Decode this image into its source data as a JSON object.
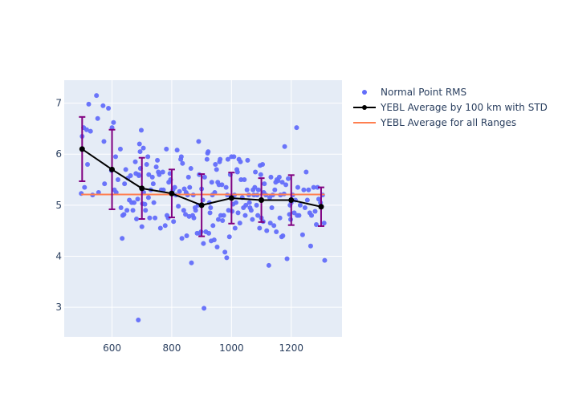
{
  "chart_data": {
    "type": "scatter",
    "xlim": [
      440,
      1370
    ],
    "ylim": [
      2.42,
      7.45
    ],
    "x_ticks": [
      600,
      800,
      1000,
      1200
    ],
    "x_tick_labels": [
      "600",
      "800",
      "1000",
      "1200"
    ],
    "y_ticks": [
      3,
      4,
      5,
      6,
      7
    ],
    "y_tick_labels": [
      "3",
      "4",
      "5",
      "6",
      "7"
    ],
    "grid": true,
    "legend_position": "right",
    "colors": {
      "plot_bg": "#e5ecf6",
      "grid": "#ffffff",
      "points": "#636efa",
      "average_line": "#000000",
      "error_bars": "#800080",
      "overall_line": "#ff7f50"
    },
    "series": [
      {
        "name": "Normal Point RMS",
        "mode": "markers",
        "points": [
          [
            497,
            5.23
          ],
          [
            500,
            6.35
          ],
          [
            505,
            6.52
          ],
          [
            508,
            5.35
          ],
          [
            515,
            6.48
          ],
          [
            518,
            5.8
          ],
          [
            522,
            6.98
          ],
          [
            528,
            6.45
          ],
          [
            535,
            5.2
          ],
          [
            548,
            7.15
          ],
          [
            552,
            6.7
          ],
          [
            555,
            5.25
          ],
          [
            570,
            6.95
          ],
          [
            573,
            6.25
          ],
          [
            575,
            5.42
          ],
          [
            588,
            6.9
          ],
          [
            598,
            5.68
          ],
          [
            600,
            6.52
          ],
          [
            605,
            6.62
          ],
          [
            608,
            5.3
          ],
          [
            612,
            5.95
          ],
          [
            614,
            5.25
          ],
          [
            620,
            5.5
          ],
          [
            628,
            6.1
          ],
          [
            630,
            4.95
          ],
          [
            634,
            4.35
          ],
          [
            636,
            4.8
          ],
          [
            640,
            4.82
          ],
          [
            642,
            5.42
          ],
          [
            646,
            5.7
          ],
          [
            650,
            4.9
          ],
          [
            653,
            5.53
          ],
          [
            658,
            5.1
          ],
          [
            662,
            5.58
          ],
          [
            666,
            5.05
          ],
          [
            670,
            4.9
          ],
          [
            674,
            5.05
          ],
          [
            678,
            5.85
          ],
          [
            680,
            5.62
          ],
          [
            682,
            4.73
          ],
          [
            686,
            5.12
          ],
          [
            688,
            2.75
          ],
          [
            689,
            5.6
          ],
          [
            690,
            5.58
          ],
          [
            692,
            6.2
          ],
          [
            694,
            6.05
          ],
          [
            695,
            5.72
          ],
          [
            698,
            6.47
          ],
          [
            700,
            4.58
          ],
          [
            702,
            5.03
          ],
          [
            705,
            6.12
          ],
          [
            706,
            5.25
          ],
          [
            710,
            5.02
          ],
          [
            712,
            4.9
          ],
          [
            716,
            5.8
          ],
          [
            720,
            5.95
          ],
          [
            722,
            5.15
          ],
          [
            723,
            5.6
          ],
          [
            726,
            4.75
          ],
          [
            730,
            5.3
          ],
          [
            735,
            5.55
          ],
          [
            738,
            5.42
          ],
          [
            740,
            5.05
          ],
          [
            744,
            4.75
          ],
          [
            748,
            5.75
          ],
          [
            752,
            5.88
          ],
          [
            755,
            5.65
          ],
          [
            758,
            5.6
          ],
          [
            762,
            4.55
          ],
          [
            765,
            5.3
          ],
          [
            770,
            5.65
          ],
          [
            772,
            5.3
          ],
          [
            778,
            4.6
          ],
          [
            782,
            6.1
          ],
          [
            784,
            4.8
          ],
          [
            788,
            4.75
          ],
          [
            790,
            5.45
          ],
          [
            794,
            5.62
          ],
          [
            796,
            5.5
          ],
          [
            800,
            5.25
          ],
          [
            804,
            5.3
          ],
          [
            806,
            4.68
          ],
          [
            810,
            5.35
          ],
          [
            814,
            5.2
          ],
          [
            818,
            6.08
          ],
          [
            822,
            4.98
          ],
          [
            826,
            5.27
          ],
          [
            830,
            5.9
          ],
          [
            832,
            5.95
          ],
          [
            834,
            4.35
          ],
          [
            836,
            5.82
          ],
          [
            840,
            4.9
          ],
          [
            842,
            5.32
          ],
          [
            846,
            4.82
          ],
          [
            848,
            5.25
          ],
          [
            850,
            4.4
          ],
          [
            853,
            5.2
          ],
          [
            856,
            5.55
          ],
          [
            858,
            4.78
          ],
          [
            860,
            5.35
          ],
          [
            864,
            5.72
          ],
          [
            866,
            3.87
          ],
          [
            870,
            4.8
          ],
          [
            872,
            5.2
          ],
          [
            874,
            4.75
          ],
          [
            878,
            4.95
          ],
          [
            880,
            4.9
          ],
          [
            885,
            4.45
          ],
          [
            888,
            5.0
          ],
          [
            890,
            6.25
          ],
          [
            892,
            5.6
          ],
          [
            895,
            4.45
          ],
          [
            898,
            4.48
          ],
          [
            900,
            5.32
          ],
          [
            904,
            5.1
          ],
          [
            906,
            4.25
          ],
          [
            908,
            2.98
          ],
          [
            910,
            5.55
          ],
          [
            914,
            4.48
          ],
          [
            918,
            5.9
          ],
          [
            920,
            6.02
          ],
          [
            922,
            6.05
          ],
          [
            924,
            4.45
          ],
          [
            926,
            5.05
          ],
          [
            928,
            4.85
          ],
          [
            930,
            4.95
          ],
          [
            932,
            4.3
          ],
          [
            934,
            5.45
          ],
          [
            936,
            5.2
          ],
          [
            938,
            4.6
          ],
          [
            942,
            4.32
          ],
          [
            944,
            5.25
          ],
          [
            946,
            5.8
          ],
          [
            950,
            5.7
          ],
          [
            952,
            4.18
          ],
          [
            954,
            5.45
          ],
          [
            956,
            4.72
          ],
          [
            958,
            5.4
          ],
          [
            960,
            5.85
          ],
          [
            962,
            5.9
          ],
          [
            964,
            4.8
          ],
          [
            968,
            5.4
          ],
          [
            970,
            4.7
          ],
          [
            974,
            4.8
          ],
          [
            978,
            4.08
          ],
          [
            982,
            5.35
          ],
          [
            984,
            3.97
          ],
          [
            986,
            5.2
          ],
          [
            988,
            5.9
          ],
          [
            990,
            4.9
          ],
          [
            993,
            4.38
          ],
          [
            996,
            5.6
          ],
          [
            998,
            5.15
          ],
          [
            1000,
            5.95
          ],
          [
            1002,
            4.88
          ],
          [
            1005,
            5.02
          ],
          [
            1008,
            5.95
          ],
          [
            1010,
            5.2
          ],
          [
            1012,
            4.55
          ],
          [
            1015,
            5.05
          ],
          [
            1018,
            5.7
          ],
          [
            1020,
            5.65
          ],
          [
            1022,
            4.85
          ],
          [
            1025,
            5.9
          ],
          [
            1028,
            4.65
          ],
          [
            1030,
            5.85
          ],
          [
            1032,
            5.5
          ],
          [
            1036,
            5.15
          ],
          [
            1040,
            4.95
          ],
          [
            1043,
            5.5
          ],
          [
            1046,
            4.8
          ],
          [
            1048,
            5.0
          ],
          [
            1052,
            5.3
          ],
          [
            1054,
            5.88
          ],
          [
            1058,
            5.2
          ],
          [
            1060,
            5.05
          ],
          [
            1062,
            4.95
          ],
          [
            1066,
            4.9
          ],
          [
            1070,
            4.72
          ],
          [
            1072,
            5.3
          ],
          [
            1075,
            5.2
          ],
          [
            1078,
            5.35
          ],
          [
            1080,
            5.65
          ],
          [
            1084,
            5.0
          ],
          [
            1086,
            5.2
          ],
          [
            1088,
            4.8
          ],
          [
            1090,
            5.3
          ],
          [
            1094,
            4.55
          ],
          [
            1096,
            5.78
          ],
          [
            1098,
            5.6
          ],
          [
            1100,
            4.75
          ],
          [
            1104,
            5.8
          ],
          [
            1106,
            4.68
          ],
          [
            1108,
            5.25
          ],
          [
            1110,
            5.42
          ],
          [
            1115,
            5.2
          ],
          [
            1118,
            4.5
          ],
          [
            1125,
            3.82
          ],
          [
            1128,
            5.15
          ],
          [
            1130,
            4.65
          ],
          [
            1132,
            5.55
          ],
          [
            1135,
            4.95
          ],
          [
            1138,
            5.2
          ],
          [
            1142,
            4.6
          ],
          [
            1145,
            5.3
          ],
          [
            1148,
            5.45
          ],
          [
            1150,
            4.48
          ],
          [
            1152,
            5.5
          ],
          [
            1156,
            5.48
          ],
          [
            1160,
            5.55
          ],
          [
            1162,
            4.75
          ],
          [
            1164,
            5.2
          ],
          [
            1168,
            4.38
          ],
          [
            1170,
            5.45
          ],
          [
            1172,
            4.4
          ],
          [
            1176,
            5.22
          ],
          [
            1178,
            6.15
          ],
          [
            1182,
            5.4
          ],
          [
            1186,
            3.95
          ],
          [
            1190,
            5.52
          ],
          [
            1194,
            4.82
          ],
          [
            1196,
            5.0
          ],
          [
            1198,
            4.72
          ],
          [
            1200,
            5.05
          ],
          [
            1205,
            5.2
          ],
          [
            1210,
            4.85
          ],
          [
            1214,
            5.1
          ],
          [
            1218,
            6.52
          ],
          [
            1220,
            4.8
          ],
          [
            1222,
            5.35
          ],
          [
            1226,
            4.8
          ],
          [
            1230,
            5.0
          ],
          [
            1238,
            4.42
          ],
          [
            1242,
            5.3
          ],
          [
            1246,
            4.95
          ],
          [
            1250,
            5.65
          ],
          [
            1254,
            5.1
          ],
          [
            1258,
            5.3
          ],
          [
            1262,
            4.85
          ],
          [
            1265,
            4.2
          ],
          [
            1268,
            4.8
          ],
          [
            1275,
            5.35
          ],
          [
            1280,
            4.88
          ],
          [
            1284,
            4.62
          ],
          [
            1288,
            5.35
          ],
          [
            1292,
            5.12
          ],
          [
            1298,
            5.05
          ],
          [
            1305,
            5.2
          ],
          [
            1310,
            4.65
          ],
          [
            1312,
            3.92
          ]
        ]
      },
      {
        "name": "YEBL Average by 100 km with STD",
        "mode": "lines+markers+error_bars",
        "x": [
          500,
          600,
          700,
          800,
          900,
          1000,
          1100,
          1200,
          1300
        ],
        "y": [
          6.1,
          5.7,
          5.33,
          5.23,
          5.0,
          5.14,
          5.1,
          5.1,
          4.97
        ],
        "error": [
          0.63,
          0.78,
          0.6,
          0.47,
          0.61,
          0.5,
          0.43,
          0.49,
          0.38
        ]
      },
      {
        "name": "YEBL Average for all Ranges",
        "mode": "lines",
        "x": [
          497,
          1312
        ],
        "y": [
          5.21,
          5.21
        ]
      }
    ]
  }
}
